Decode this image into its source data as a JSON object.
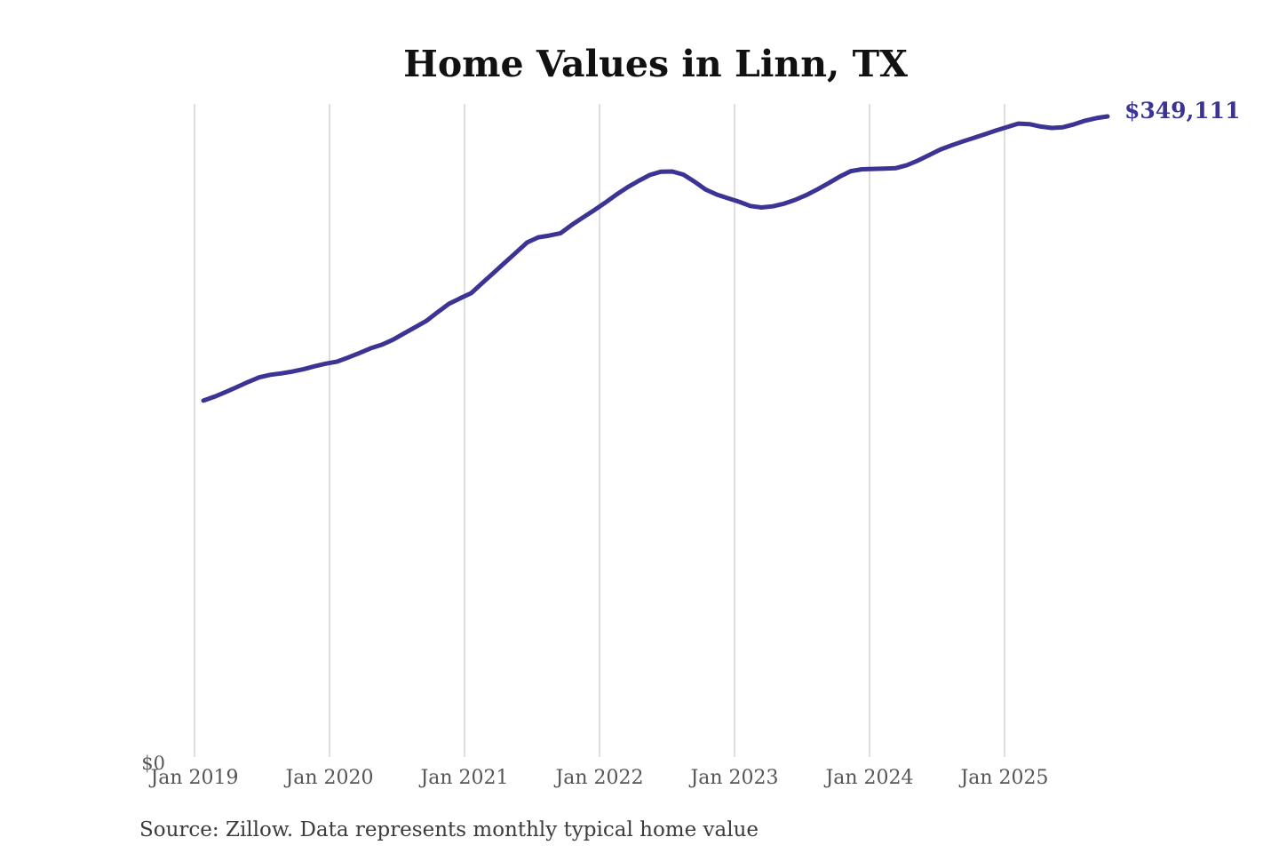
{
  "chart_data": {
    "type": "line",
    "title": "Home Values in Linn, TX",
    "source_note": "Source: Zillow. Data represents monthly typical home value",
    "y_zero_label": "$0",
    "end_value_label": "$349,111",
    "end_value": 349111,
    "x_tick_labels": [
      "Jan 2019",
      "Jan 2020",
      "Jan 2021",
      "Jan 2022",
      "Jan 2023",
      "Jan 2024",
      "Jan 2025"
    ],
    "ylim": [
      0,
      349111
    ],
    "grid": "vertical-only",
    "legend": "none",
    "series": [
      {
        "name": "Monthly typical home value",
        "x": [
          "2019-01",
          "2019-02",
          "2019-03",
          "2019-04",
          "2019-05",
          "2019-06",
          "2019-07",
          "2019-08",
          "2019-09",
          "2019-10",
          "2019-11",
          "2019-12",
          "2020-01",
          "2020-02",
          "2020-03",
          "2020-04",
          "2020-05",
          "2020-06",
          "2020-07",
          "2020-08",
          "2020-09",
          "2020-10",
          "2020-11",
          "2020-12",
          "2021-01",
          "2021-02",
          "2021-03",
          "2021-04",
          "2021-05",
          "2021-06",
          "2021-07",
          "2021-08",
          "2021-09",
          "2021-10",
          "2021-11",
          "2021-12",
          "2022-01",
          "2022-02",
          "2022-03",
          "2022-04",
          "2022-05",
          "2022-06",
          "2022-07",
          "2022-08",
          "2022-09",
          "2022-10",
          "2022-11",
          "2022-12",
          "2023-01",
          "2023-02",
          "2023-03",
          "2023-04",
          "2023-05",
          "2023-06",
          "2023-07",
          "2023-08",
          "2023-09",
          "2023-10",
          "2023-11",
          "2023-12",
          "2024-01",
          "2024-02",
          "2024-03",
          "2024-04",
          "2024-05",
          "2024-06",
          "2024-07",
          "2024-08",
          "2024-09",
          "2024-10",
          "2024-11",
          "2024-12",
          "2025-01",
          "2025-02",
          "2025-03",
          "2025-04",
          "2025-05",
          "2025-06",
          "2025-07",
          "2025-08",
          "2025-09",
          "2025-10"
        ],
        "values": [
          194200,
          196400,
          198900,
          201600,
          204400,
          206900,
          208300,
          209100,
          210100,
          211400,
          213000,
          214400,
          215500,
          217800,
          220200,
          222800,
          224700,
          227500,
          230900,
          234300,
          237800,
          242500,
          247000,
          250000,
          252800,
          258400,
          263900,
          269400,
          274900,
          280400,
          283200,
          284200,
          285500,
          290000,
          294000,
          298000,
          302100,
          306500,
          310500,
          314000,
          317200,
          319000,
          319100,
          317400,
          313500,
          309200,
          306500,
          304500,
          302600,
          300300,
          299500,
          300100,
          301500,
          303600,
          306200,
          309300,
          312700,
          316300,
          319300,
          320300,
          320500,
          320700,
          320900,
          322500,
          325000,
          328000,
          331000,
          333300,
          335400,
          337400,
          339400,
          341400,
          343300,
          345200,
          344900,
          343600,
          342800,
          343200,
          344800,
          346800,
          348200,
          349111
        ]
      }
    ],
    "colors": {
      "line": "#3b3494",
      "grid": "#d4d4d4",
      "title": "#111111",
      "tick": "#555555",
      "source": "#3c3c3c",
      "end_label": "#3b3494",
      "background": "#ffffff"
    }
  }
}
